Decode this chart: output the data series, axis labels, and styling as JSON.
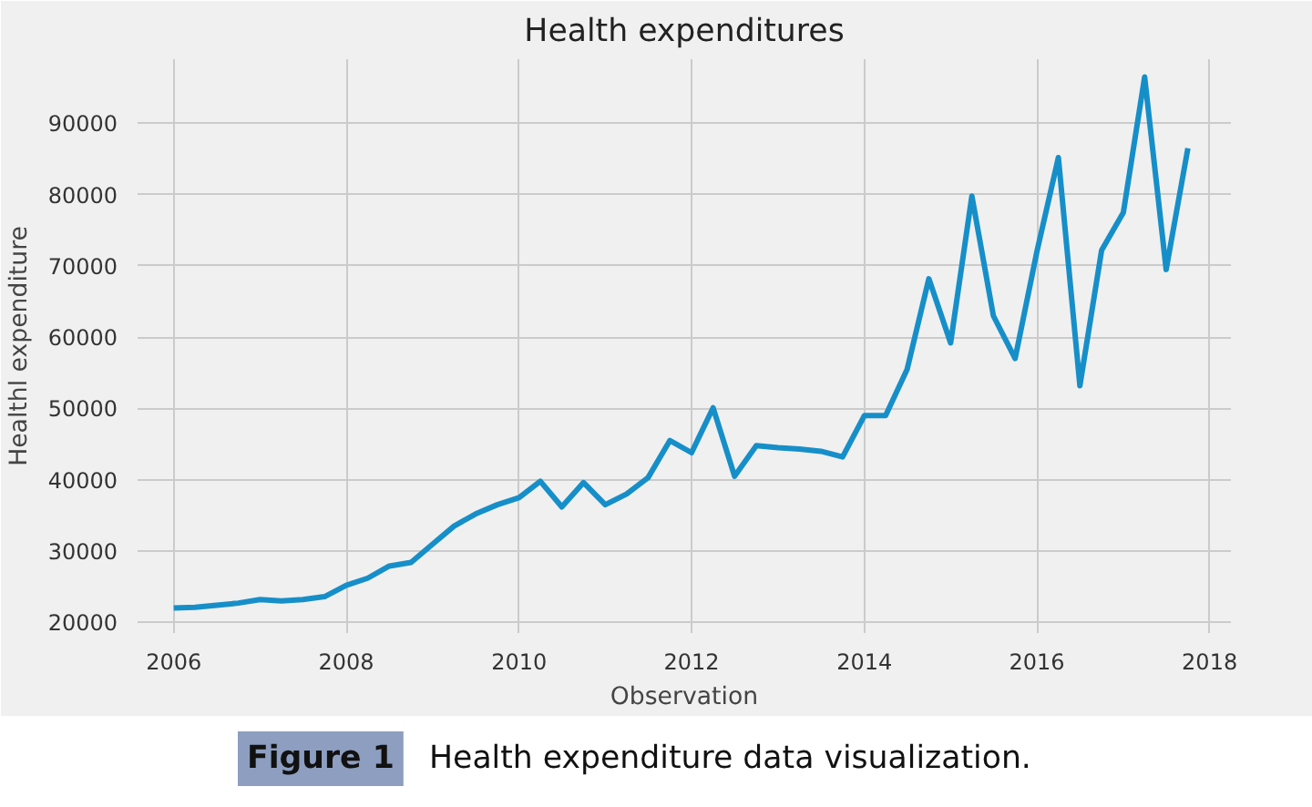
{
  "chart_data": {
    "type": "line",
    "title": "Health expenditures",
    "xlabel": "Observation",
    "ylabel": "Healthl expenditure",
    "x": [
      "2006-01",
      "2006-04",
      "2006-07",
      "2006-10",
      "2007-01",
      "2007-04",
      "2007-07",
      "2007-10",
      "2008-01",
      "2008-04",
      "2008-07",
      "2008-10",
      "2009-01",
      "2009-04",
      "2009-07",
      "2009-10",
      "2010-01",
      "2010-04",
      "2010-07",
      "2010-10",
      "2011-01",
      "2011-04",
      "2011-07",
      "2011-10",
      "2012-01",
      "2012-04",
      "2012-07",
      "2012-10",
      "2013-01",
      "2013-04",
      "2013-07",
      "2013-10",
      "2014-01",
      "2014-04",
      "2014-07",
      "2014-10",
      "2015-01",
      "2015-04",
      "2015-07",
      "2015-10",
      "2016-01",
      "2016-04",
      "2016-07",
      "2016-10",
      "2017-01",
      "2017-04",
      "2017-07",
      "2017-10"
    ],
    "series": [
      {
        "color": "#168fc9",
        "values": [
          22000,
          22100,
          22400,
          22700,
          23200,
          23000,
          23200,
          23600,
          25200,
          26200,
          27900,
          28400,
          31000,
          33500,
          35200,
          36500,
          37500,
          39800,
          36200,
          39600,
          36500,
          38000,
          40300,
          45500,
          43800,
          50100,
          40500,
          44800,
          44500,
          44300,
          44000,
          43200,
          49000,
          49000,
          55500,
          68200,
          59200,
          79800,
          63000,
          57000,
          72000,
          85200,
          53200,
          72200,
          77500,
          96500,
          69500,
          86500
        ]
      }
    ],
    "xlim": [
      "2005-08",
      "2018-04"
    ],
    "xticks": [
      "2006",
      "2008",
      "2010",
      "2012",
      "2014",
      "2016",
      "2018"
    ],
    "ylim": [
      18500,
      99000
    ],
    "yticks": [
      20000,
      30000,
      40000,
      50000,
      60000,
      70000,
      80000,
      90000
    ],
    "grid": true,
    "line_style": "solid",
    "annotations": [
      "Figure 1",
      "Health expenditure data visualization."
    ]
  }
}
